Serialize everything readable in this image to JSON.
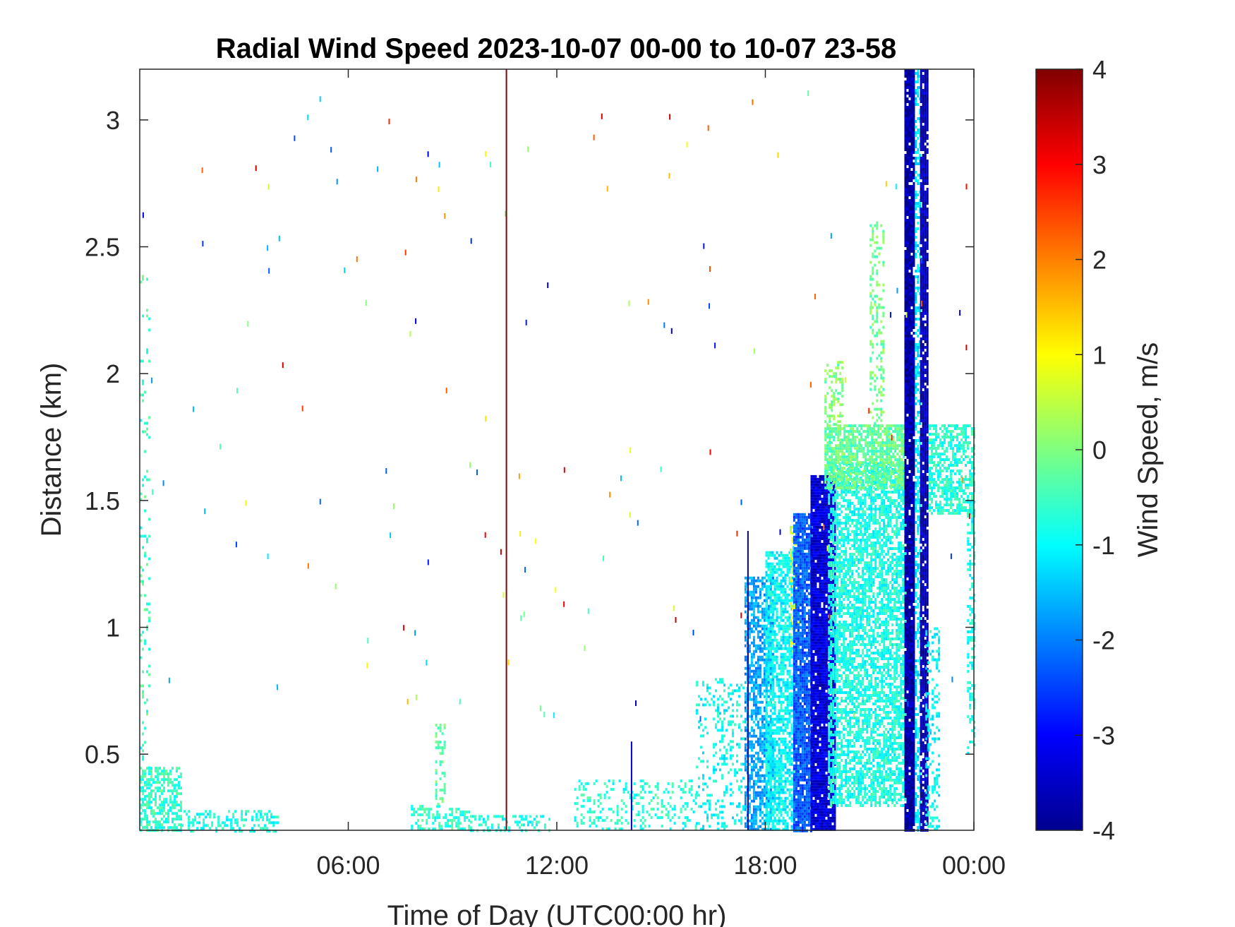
{
  "chart_data": {
    "type": "heatmap",
    "title": "Radial Wind Speed 2023-10-07 00-00 to 10-07 23-58",
    "xlabel": "Time of Day (UTC00:00 hr)",
    "ylabel": "Distance (km)",
    "colorbar_label": "Wind Speed, m/s",
    "colormap": "jet",
    "xlim_hours": [
      0,
      24
    ],
    "ylim_km": [
      0.2,
      3.2
    ],
    "clim": [
      -4,
      4
    ],
    "x_ticks": [
      {
        "label": "06:00",
        "hour": 6
      },
      {
        "label": "12:00",
        "hour": 12
      },
      {
        "label": "18:00",
        "hour": 18
      },
      {
        "label": "00:00",
        "hour": 24
      }
    ],
    "y_ticks": [
      {
        "label": "0.5",
        "value": 0.5
      },
      {
        "label": "1",
        "value": 1
      },
      {
        "label": "1.5",
        "value": 1.5
      },
      {
        "label": "2",
        "value": 2
      },
      {
        "label": "2.5",
        "value": 2.5
      },
      {
        "label": "3",
        "value": 3
      }
    ],
    "c_ticks": [
      {
        "label": "-4",
        "value": -4
      },
      {
        "label": "-3",
        "value": -3
      },
      {
        "label": "-2",
        "value": -2
      },
      {
        "label": "-1",
        "value": -1
      },
      {
        "label": "0",
        "value": 0
      },
      {
        "label": "1",
        "value": 1
      },
      {
        "label": "2",
        "value": 2
      },
      {
        "label": "3",
        "value": 3
      },
      {
        "label": "4",
        "value": 4
      }
    ],
    "regions": [
      {
        "t0": 0.0,
        "t1": 1.2,
        "d0": 0.2,
        "d1": 0.45,
        "v": -0.6,
        "density": 0.55
      },
      {
        "t0": 0.0,
        "t1": 0.25,
        "d0": 0.2,
        "d1": 2.4,
        "v": -0.5,
        "density": 0.12
      },
      {
        "t0": 1.2,
        "t1": 4.0,
        "d0": 0.2,
        "d1": 0.28,
        "v": -0.8,
        "density": 0.35
      },
      {
        "t0": 7.8,
        "t1": 9.5,
        "d0": 0.2,
        "d1": 0.3,
        "v": -0.6,
        "density": 0.45
      },
      {
        "t0": 8.5,
        "t1": 8.8,
        "d0": 0.3,
        "d1": 0.62,
        "v": -0.3,
        "density": 0.35
      },
      {
        "t0": 9.5,
        "t1": 11.8,
        "d0": 0.2,
        "d1": 0.26,
        "v": -0.8,
        "density": 0.35
      },
      {
        "t0": 12.5,
        "t1": 16.0,
        "d0": 0.2,
        "d1": 0.4,
        "v": -0.7,
        "density": 0.25
      },
      {
        "t0": 16.0,
        "t1": 17.4,
        "d0": 0.2,
        "d1": 0.8,
        "v": -0.9,
        "density": 0.22
      },
      {
        "t0": 17.4,
        "t1": 18.2,
        "d0": 0.2,
        "d1": 1.2,
        "v": -1.7,
        "density": 0.65
      },
      {
        "t0": 18.0,
        "t1": 18.8,
        "d0": 0.2,
        "d1": 1.3,
        "v": -1.0,
        "density": 0.7
      },
      {
        "t0": 18.7,
        "t1": 19.0,
        "d0": 0.9,
        "d1": 1.4,
        "v": 0.6,
        "density": 0.55
      },
      {
        "t0": 18.8,
        "t1": 19.3,
        "d0": 0.2,
        "d1": 1.45,
        "v": -2.3,
        "density": 0.9
      },
      {
        "t0": 19.3,
        "t1": 20.0,
        "d0": 0.2,
        "d1": 1.6,
        "v": -3.3,
        "density": 0.95
      },
      {
        "t0": 19.8,
        "t1": 22.0,
        "d0": 0.3,
        "d1": 1.65,
        "v": -0.8,
        "density": 0.65
      },
      {
        "t0": 19.7,
        "t1": 22.0,
        "d0": 1.55,
        "d1": 1.8,
        "v": -0.2,
        "density": 0.75
      },
      {
        "t0": 19.7,
        "t1": 20.2,
        "d0": 1.8,
        "d1": 2.05,
        "v": 0.0,
        "density": 0.4
      },
      {
        "t0": 21.0,
        "t1": 21.4,
        "d0": 1.8,
        "d1": 2.6,
        "v": -0.1,
        "density": 0.25
      },
      {
        "t0": 22.0,
        "t1": 22.3,
        "d0": 0.2,
        "d1": 3.2,
        "v": -3.7,
        "density": 0.95
      },
      {
        "t0": 22.3,
        "t1": 22.45,
        "d0": 0.2,
        "d1": 3.2,
        "v": -1.2,
        "density": 0.5
      },
      {
        "t0": 22.45,
        "t1": 22.65,
        "d0": 0.2,
        "d1": 3.2,
        "v": -3.6,
        "density": 0.9
      },
      {
        "t0": 22.7,
        "t1": 24.0,
        "d0": 1.45,
        "d1": 1.8,
        "v": -0.7,
        "density": 0.6
      },
      {
        "t0": 22.6,
        "t1": 23.0,
        "d0": 0.2,
        "d1": 1.0,
        "v": -1.0,
        "density": 0.3
      },
      {
        "t0": 23.8,
        "t1": 24.0,
        "d0": 0.5,
        "d1": 1.5,
        "v": -0.9,
        "density": 0.35
      }
    ],
    "lines": [
      {
        "t": 10.55,
        "d0": 0.2,
        "d1": 3.2,
        "v": 3.9
      },
      {
        "t": 17.5,
        "d0": 0.2,
        "d1": 1.38,
        "v": -3.8
      },
      {
        "t": 14.15,
        "d0": 0.2,
        "d1": 0.55,
        "v": -3.5
      }
    ]
  }
}
